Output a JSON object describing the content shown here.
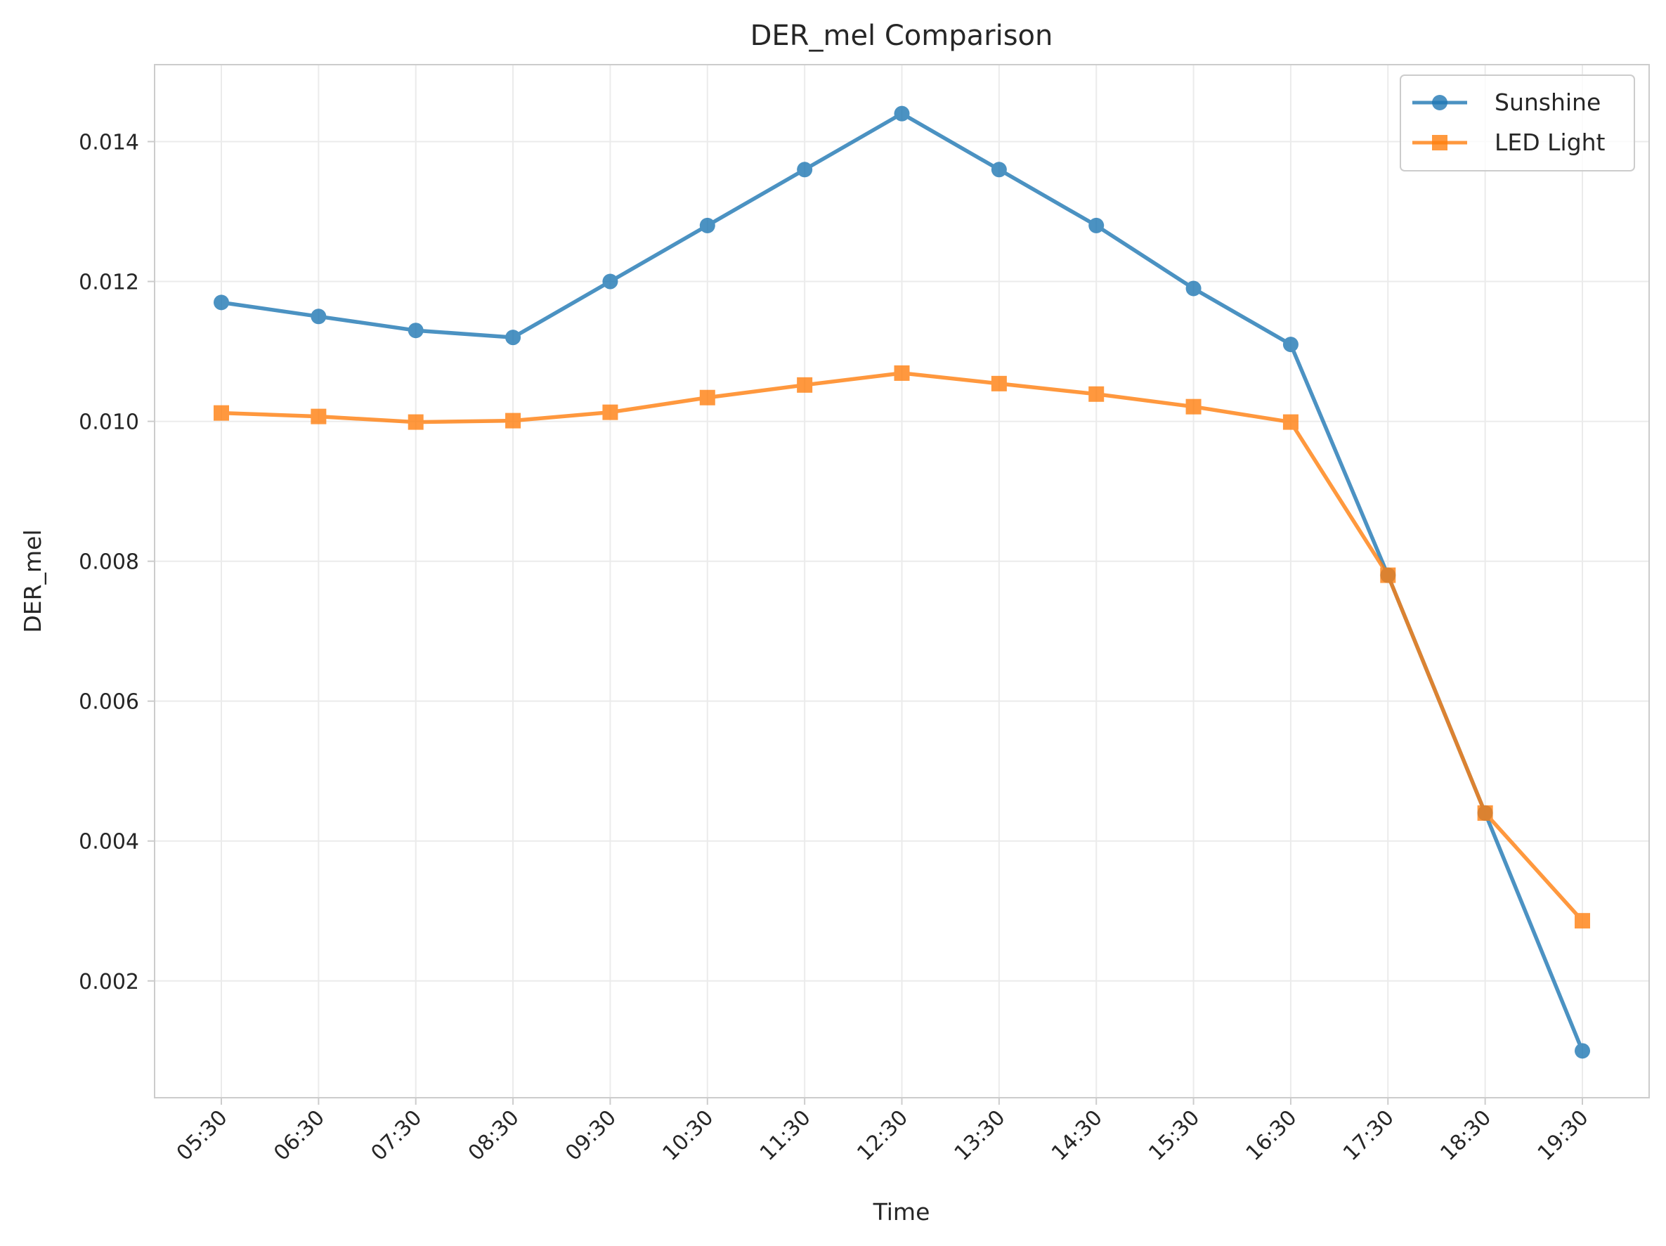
{
  "chart_data": {
    "type": "line",
    "title": "DER_mel Comparison",
    "xlabel": "Time",
    "ylabel": "DER_mel",
    "categories": [
      "05:30",
      "06:30",
      "07:30",
      "08:30",
      "09:30",
      "10:30",
      "11:30",
      "12:30",
      "13:30",
      "14:30",
      "15:30",
      "16:30",
      "17:30",
      "18:30",
      "19:30"
    ],
    "y_ticks": [
      "0.002",
      "0.004",
      "0.006",
      "0.008",
      "0.010",
      "0.012",
      "0.014"
    ],
    "ylim": [
      0.00033,
      0.0151
    ],
    "grid": true,
    "legend_position": "top-right",
    "series": [
      {
        "name": "Sunshine",
        "color": "#1f77b4",
        "marker": "circle",
        "values": [
          0.0117,
          0.0115,
          0.0113,
          0.0112,
          0.012,
          0.0128,
          0.0136,
          0.0144,
          0.0136,
          0.0128,
          0.0119,
          0.0111,
          0.0078,
          0.0044,
          0.001
        ]
      },
      {
        "name": "LED Light",
        "color": "#ff7f0e",
        "marker": "square",
        "values": [
          0.01012,
          0.01007,
          0.00999,
          0.01001,
          0.01013,
          0.01034,
          0.01052,
          0.01069,
          0.01054,
          0.01039,
          0.01021,
          0.00999,
          0.0078,
          0.0044,
          0.00286
        ]
      }
    ]
  }
}
